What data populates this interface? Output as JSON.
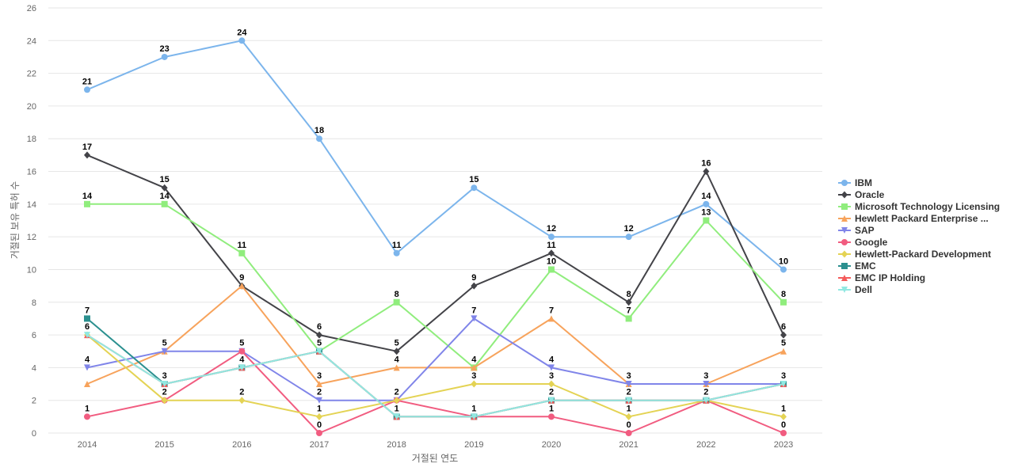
{
  "chart_data": {
    "type": "line",
    "title": "",
    "xlabel": "거절된 연도",
    "ylabel": "거절된 보유 특허 수",
    "categories": [
      "2014",
      "2015",
      "2016",
      "2017",
      "2018",
      "2019",
      "2020",
      "2021",
      "2022",
      "2023"
    ],
    "ylim": [
      0,
      26
    ],
    "yticks": [
      0,
      2,
      4,
      6,
      8,
      10,
      12,
      14,
      16,
      18,
      20,
      22,
      24,
      26
    ],
    "grid": true,
    "legend_position": "right",
    "series": [
      {
        "name": "IBM",
        "color": "#7cb5ec",
        "marker": "circle",
        "values": [
          21,
          23,
          24,
          18,
          11,
          15,
          12,
          12,
          14,
          10
        ],
        "labels": [
          "21",
          "23",
          "24",
          "18",
          "11",
          "15",
          "12",
          "12",
          "14",
          "10"
        ]
      },
      {
        "name": "Oracle",
        "color": "#434348",
        "marker": "diamond",
        "values": [
          17,
          15,
          9,
          6,
          5,
          9,
          11,
          8,
          16,
          6
        ],
        "labels": [
          "17",
          "15",
          "9",
          "6",
          "5",
          "9",
          "11",
          "8",
          "16",
          "6"
        ]
      },
      {
        "name": "Microsoft Technology Licensing",
        "color": "#90ed7d",
        "marker": "square",
        "values": [
          14,
          14,
          11,
          5,
          8,
          4,
          10,
          7,
          13,
          8
        ],
        "labels": [
          "14",
          "14",
          "11",
          "",
          "8",
          "4",
          "10",
          "7",
          "13",
          "8"
        ]
      },
      {
        "name": "Hewlett Packard Enterprise ...",
        "color": "#f7a35c",
        "marker": "triangle",
        "values": [
          3,
          5,
          9,
          3,
          4,
          4,
          7,
          3,
          3,
          5
        ],
        "labels": [
          "",
          "",
          "",
          "3",
          "4",
          "",
          "7",
          "",
          "",
          "5"
        ]
      },
      {
        "name": "SAP",
        "color": "#8085e9",
        "marker": "triangle-down",
        "values": [
          4,
          5,
          5,
          2,
          2,
          7,
          4,
          3,
          3,
          3
        ],
        "labels": [
          "4",
          "5",
          "5",
          "2",
          "",
          "7",
          "4",
          "3",
          "3",
          "3"
        ]
      },
      {
        "name": "Google",
        "color": "#f15c80",
        "marker": "circle",
        "values": [
          1,
          2,
          5,
          0,
          2,
          1,
          1,
          0,
          2,
          0
        ],
        "labels": [
          "1",
          "",
          "",
          "0",
          "2",
          "1",
          "1",
          "0",
          "",
          "0"
        ]
      },
      {
        "name": "Hewlett-Packard Development",
        "color": "#e4d354",
        "marker": "diamond",
        "values": [
          6,
          2,
          2,
          1,
          2,
          3,
          3,
          1,
          2,
          1
        ],
        "labels": [
          "6",
          "2",
          "2",
          "1",
          "",
          "3",
          "3",
          "1",
          "2",
          "1"
        ]
      },
      {
        "name": "EMC",
        "color": "#2b908f",
        "marker": "square",
        "values": [
          7,
          3,
          4,
          5,
          1,
          1,
          2,
          2,
          2,
          3
        ],
        "labels": [
          "7",
          "3",
          "4",
          "5",
          "1",
          "",
          "2",
          "2",
          "",
          ""
        ]
      },
      {
        "name": "EMC IP Holding",
        "color": "#f45b5b",
        "marker": "triangle",
        "values": [
          6,
          3,
          4,
          5,
          1,
          1,
          2,
          2,
          2,
          3
        ],
        "labels": [
          "",
          "",
          "",
          "",
          "",
          "",
          "",
          "",
          "",
          ""
        ]
      },
      {
        "name": "Dell",
        "color": "#91e8e1",
        "marker": "triangle-down",
        "values": [
          6,
          3,
          4,
          5,
          1,
          1,
          2,
          2,
          2,
          3
        ],
        "labels": [
          "",
          "",
          "",
          "",
          "",
          "",
          "",
          "",
          "",
          ""
        ]
      }
    ]
  }
}
